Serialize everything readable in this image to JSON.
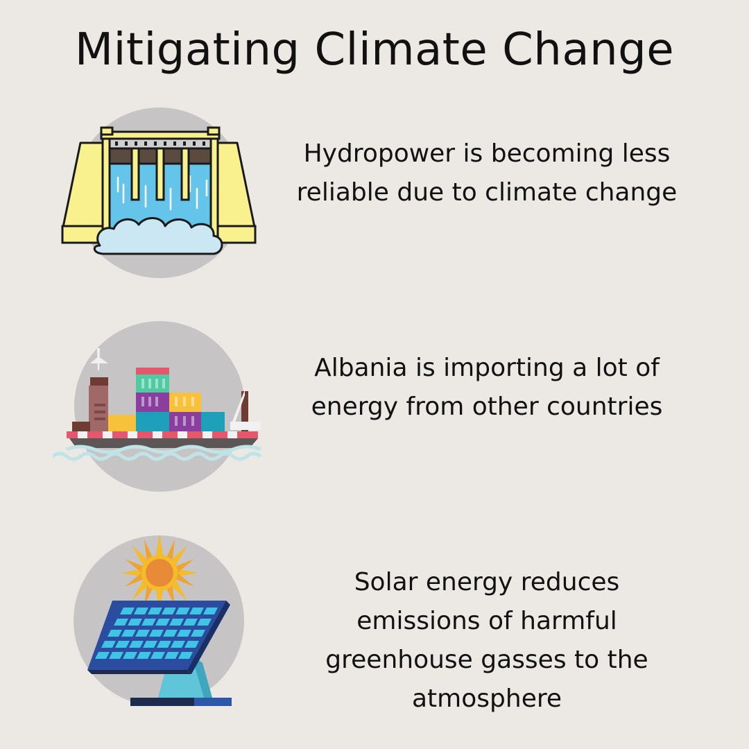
{
  "title": "Mitigating Climate Change",
  "items": [
    {
      "icon": "hydropower-dam-icon",
      "text": "Hydropower is becoming less reliable due to climate change"
    },
    {
      "icon": "cargo-ship-icon",
      "text": "Albania is importing a lot of energy from other countries"
    },
    {
      "icon": "solar-panel-icon",
      "text": "Solar energy  reduces emissions of harmful greenhouse gasses to the atmosphere"
    }
  ],
  "colors": {
    "background": "#ece9e5",
    "icon_circle": "#c6c4c4",
    "text": "#111111"
  }
}
